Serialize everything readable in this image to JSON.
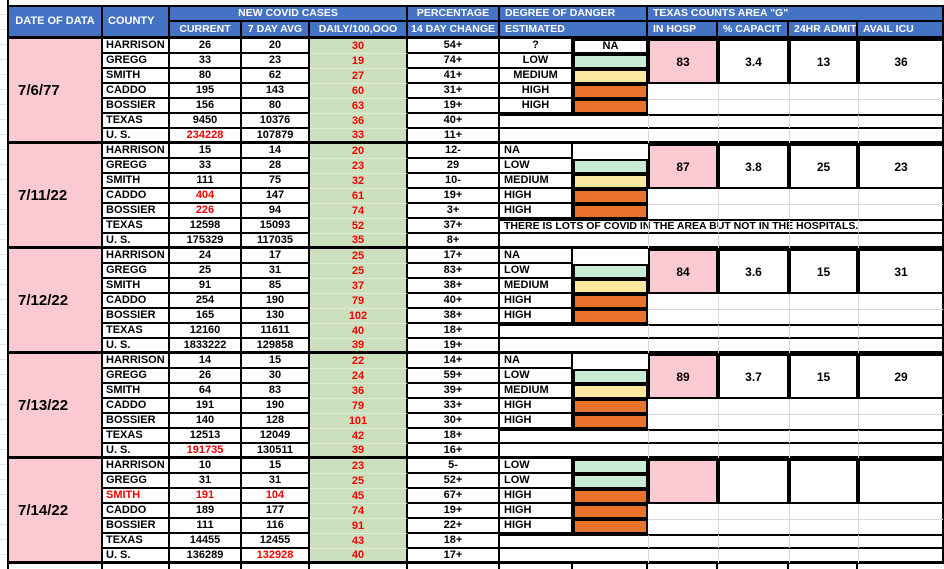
{
  "header": {
    "date_of_data": "DATE OF DATA",
    "county": "COUNTY",
    "new_covid_cases": "NEW COVID CASES",
    "current": "CURRENT",
    "seven_day_avg": "7 DAY AVG",
    "daily_per_100k": "DAILY/100,OOO",
    "percentage": "PERCENTAGE",
    "fourteen_day_change": "14 DAY CHANGE",
    "degree_of_danger": "DEGREE OF DANGER",
    "estimated": "ESTIMATED",
    "texas_counts_area_g": "TEXAS COUNTS AREA \"G\"",
    "in_hosp": "IN HOSP",
    "pct_capacity": "% CAPACIT",
    "admit_24hr": "24HR ADMIT",
    "avail_icu": "AVAIL ICU"
  },
  "colors": {
    "header_blue": "#4472C4",
    "pink": "#FBC9D2",
    "green_column": "#CCE0BE",
    "swatch_green": "#C9ECD4",
    "swatch_yellow": "#FCE79E",
    "swatch_orange": "#E9732A",
    "red_text": "#F40000",
    "grid_black": "#000000",
    "grid_faint": "#D9D9D9"
  },
  "blocks": [
    {
      "date": "7/6/77",
      "rows": [
        {
          "county": "HARRISON",
          "current": "26",
          "avg": "20",
          "daily": "30",
          "change": "54+",
          "red": [
            "daily"
          ]
        },
        {
          "county": "GREGG",
          "current": "33",
          "avg": "23",
          "daily": "19",
          "change": "74+",
          "red": [
            "daily"
          ]
        },
        {
          "county": "SMITH",
          "current": "80",
          "avg": "62",
          "daily": "27",
          "change": "41+",
          "red": [
            "daily"
          ]
        },
        {
          "county": "CADDO",
          "current": "195",
          "avg": "143",
          "daily": "60",
          "change": "31+",
          "red": [
            "daily"
          ]
        },
        {
          "county": "BOSSIER",
          "current": "156",
          "avg": "80",
          "daily": "63",
          "change": "19+",
          "red": [
            "daily"
          ]
        },
        {
          "county": "TEXAS",
          "current": "9450",
          "avg": "10376",
          "daily": "36",
          "change": "40+",
          "red": [
            "daily"
          ]
        },
        {
          "county": "U. S.",
          "current": "234228",
          "avg": "107879",
          "daily": "33",
          "change": "11+",
          "red": [
            "current",
            "daily"
          ]
        }
      ],
      "danger": [
        {
          "label": "?",
          "swatch": "white",
          "swatch_text": "NA"
        },
        {
          "label": "LOW",
          "swatch": "green"
        },
        {
          "label": "MEDIUM",
          "swatch": "yellow"
        },
        {
          "label": "HIGH",
          "swatch": "orange"
        },
        {
          "label": "HIGH",
          "swatch": "orange"
        }
      ],
      "danger_align": "center",
      "counts": {
        "in_hosp": "83",
        "capacity": "3.4",
        "admit": "13",
        "icu": "36"
      },
      "note": ""
    },
    {
      "date": "7/11/22",
      "rows": [
        {
          "county": "HARRISON",
          "current": "15",
          "avg": "14",
          "daily": "20",
          "change": "12-",
          "red": [
            "daily"
          ]
        },
        {
          "county": "GREGG",
          "current": "33",
          "avg": "28",
          "daily": "23",
          "change": "29",
          "red": [
            "daily"
          ]
        },
        {
          "county": "SMITH",
          "current": "111",
          "avg": "75",
          "daily": "32",
          "change": "10-",
          "red": [
            "daily"
          ]
        },
        {
          "county": "CADDO",
          "current": "404",
          "avg": "147",
          "daily": "61",
          "change": "19+",
          "red": [
            "current",
            "daily"
          ]
        },
        {
          "county": "BOSSIER",
          "current": "226",
          "avg": "94",
          "daily": "74",
          "change": "3+",
          "red": [
            "current",
            "daily"
          ]
        },
        {
          "county": "TEXAS",
          "current": "12598",
          "avg": "15093",
          "daily": "52",
          "change": "37+",
          "red": [
            "daily"
          ]
        },
        {
          "county": "U. S.",
          "current": "175329",
          "avg": "117035",
          "daily": "35",
          "change": "8+",
          "red": [
            "daily"
          ]
        }
      ],
      "danger": [
        {
          "label": "NA",
          "swatch": null
        },
        {
          "label": "LOW",
          "swatch": "green"
        },
        {
          "label": "MEDIUM",
          "swatch": "yellow"
        },
        {
          "label": "HIGH",
          "swatch": "orange"
        },
        {
          "label": "HIGH",
          "swatch": "orange"
        }
      ],
      "danger_align": "left",
      "counts": {
        "in_hosp": "87",
        "capacity": "3.8",
        "admit": "25",
        "icu": "23"
      },
      "note": "THERE IS LOTS OF COVID IN THE AREA BUT NOT IN THE HOSPITALS."
    },
    {
      "date": "7/12/22",
      "rows": [
        {
          "county": "HARRISON",
          "current": "24",
          "avg": "17",
          "daily": "25",
          "change": "17+",
          "red": [
            "daily"
          ]
        },
        {
          "county": "GREGG",
          "current": "25",
          "avg": "31",
          "daily": "25",
          "change": "83+",
          "red": [
            "daily"
          ]
        },
        {
          "county": "SMITH",
          "current": "91",
          "avg": "85",
          "daily": "37",
          "change": "38+",
          "red": [
            "daily"
          ]
        },
        {
          "county": "CADDO",
          "current": "254",
          "avg": "190",
          "daily": "79",
          "change": "40+",
          "red": [
            "daily"
          ]
        },
        {
          "county": "BOSSIER",
          "current": "165",
          "avg": "130",
          "daily": "102",
          "change": "38+",
          "red": [
            "daily"
          ]
        },
        {
          "county": "TEXAS",
          "current": "12160",
          "avg": "11611",
          "daily": "40",
          "change": "18+",
          "red": [
            "daily"
          ]
        },
        {
          "county": "U. S.",
          "current": "1833222",
          "avg": "129858",
          "daily": "39",
          "change": "19+",
          "red": [
            "daily"
          ]
        }
      ],
      "danger": [
        {
          "label": "NA",
          "swatch": null
        },
        {
          "label": "LOW",
          "swatch": "green"
        },
        {
          "label": "MEDIUM",
          "swatch": "yellow"
        },
        {
          "label": "HIGH",
          "swatch": "orange"
        },
        {
          "label": "HIGH",
          "swatch": "orange"
        }
      ],
      "danger_align": "left",
      "counts": {
        "in_hosp": "84",
        "capacity": "3.6",
        "admit": "15",
        "icu": "31"
      },
      "note": ""
    },
    {
      "date": "7/13/22",
      "rows": [
        {
          "county": "HARRISON",
          "current": "14",
          "avg": "15",
          "daily": "22",
          "change": "14+",
          "red": [
            "daily"
          ]
        },
        {
          "county": "GREGG",
          "current": "26",
          "avg": "30",
          "daily": "24",
          "change": "59+",
          "red": [
            "daily"
          ]
        },
        {
          "county": "SMITH",
          "current": "64",
          "avg": "83",
          "daily": "36",
          "change": "39+",
          "red": [
            "daily"
          ]
        },
        {
          "county": "CADDO",
          "current": "191",
          "avg": "190",
          "daily": "79",
          "change": "33+",
          "red": [
            "daily"
          ]
        },
        {
          "county": "BOSSIER",
          "current": "140",
          "avg": "128",
          "daily": "101",
          "change": "30+",
          "red": [
            "daily"
          ]
        },
        {
          "county": "TEXAS",
          "current": "12513",
          "avg": "12049",
          "daily": "42",
          "change": "18+",
          "red": [
            "daily"
          ]
        },
        {
          "county": "U. S.",
          "current": "191735",
          "avg": "130511",
          "daily": "39",
          "change": "16+",
          "red": [
            "current",
            "daily"
          ]
        }
      ],
      "danger": [
        {
          "label": "NA",
          "swatch": null
        },
        {
          "label": "LOW",
          "swatch": "green"
        },
        {
          "label": "MEDIUM",
          "swatch": "yellow"
        },
        {
          "label": "HIGH",
          "swatch": "orange"
        },
        {
          "label": "HIGH",
          "swatch": "orange"
        }
      ],
      "danger_align": "left",
      "counts": {
        "in_hosp": "89",
        "capacity": "3.7",
        "admit": "15",
        "icu": "29"
      },
      "note": ""
    },
    {
      "date": "7/14/22",
      "rows": [
        {
          "county": "HARRISON",
          "current": "10",
          "avg": "15",
          "daily": "23",
          "change": "5-",
          "red": [
            "daily"
          ]
        },
        {
          "county": "GREGG",
          "current": "31",
          "avg": "31",
          "daily": "25",
          "change": "52+",
          "red": [
            "daily"
          ]
        },
        {
          "county": "SMITH",
          "current": "191",
          "avg": "104",
          "daily": "45",
          "change": "67+",
          "red": [
            "county",
            "current",
            "avg",
            "daily"
          ]
        },
        {
          "county": "CADDO",
          "current": "189",
          "avg": "177",
          "daily": "74",
          "change": "19+",
          "red": [
            "daily"
          ]
        },
        {
          "county": "BOSSIER",
          "current": "111",
          "avg": "116",
          "daily": "91",
          "change": "22+",
          "red": [
            "daily"
          ]
        },
        {
          "county": "TEXAS",
          "current": "14455",
          "avg": "12455",
          "daily": "43",
          "change": "18+",
          "red": [
            "daily"
          ]
        },
        {
          "county": "U. S.",
          "current": "136289",
          "avg": "132928",
          "daily": "40",
          "change": "17+",
          "red": [
            "avg",
            "daily"
          ]
        }
      ],
      "danger": [
        {
          "label": "LOW",
          "swatch": "green"
        },
        {
          "label": "LOW",
          "swatch": "green"
        },
        {
          "label": "HIGH",
          "swatch": "orange"
        },
        {
          "label": "HIGH",
          "swatch": "orange"
        },
        {
          "label": "HIGH",
          "swatch": "orange"
        }
      ],
      "danger_align": "left",
      "counts": {
        "in_hosp": "",
        "capacity": "",
        "admit": "",
        "icu": ""
      },
      "note": ""
    }
  ]
}
